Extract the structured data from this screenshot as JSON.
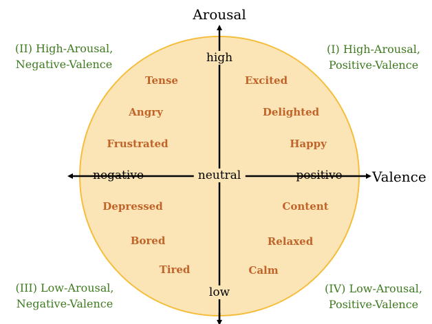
{
  "axes": {
    "vertical_title": "Arousal",
    "horizontal_title": "Valence",
    "high": "high",
    "low": "low",
    "negative": "negative",
    "positive": "positive",
    "neutral": "neutral"
  },
  "quadrants": {
    "q1": {
      "line1": "(I) High-Arousal,",
      "line2": "Positive-Valence"
    },
    "q2": {
      "line1": "(II) High-Arousal,",
      "line2": "Negative-Valence"
    },
    "q3": {
      "line1": "(III) Low-Arousal,",
      "line2": "Negative-Valence"
    },
    "q4": {
      "line1": "(IV) Low-Arousal,",
      "line2": "Positive-Valence"
    }
  },
  "emotions": {
    "tense": "Tense",
    "angry": "Angry",
    "frustrated": "Frustrated",
    "depressed": "Depressed",
    "bored": "Bored",
    "tired": "Tired",
    "excited": "Excited",
    "delighted": "Delighted",
    "happy": "Happy",
    "content": "Content",
    "relaxed": "Relaxed",
    "calm": "Calm"
  },
  "colors": {
    "circle_fill": "#fbe5b6",
    "circle_stroke": "#f5bd3a",
    "emotion_text": "#c0642a",
    "quadrant_text": "#3e7a1f",
    "axis_line": "#000000"
  }
}
